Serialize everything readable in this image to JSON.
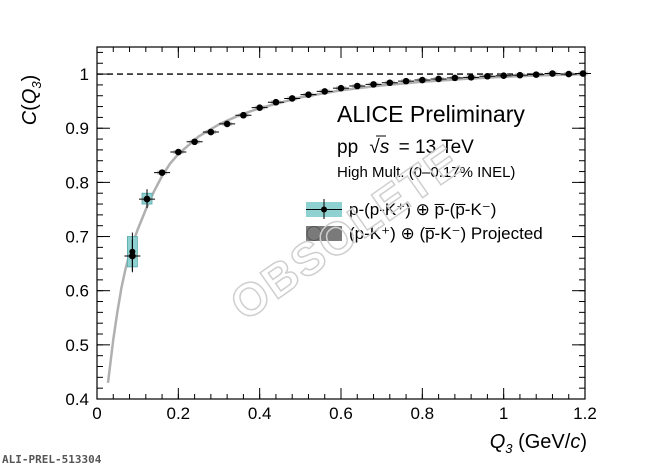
{
  "reference_id": "ALI-PREL-513304",
  "watermark": "OBSOLETE",
  "annotations": {
    "collab": "ALICE Preliminary",
    "system": "pp",
    "sqrt_s": "s",
    "energy": "= 13 TeV",
    "multiplicity": "High Mult. (0–0.17% INEL)"
  },
  "legend": {
    "series1": "p-(p-K⁺) ⊕ p̅-(p̅-K⁻)",
    "series2": "(p-K⁺) ⊕ (p̅-K⁻) Projected"
  },
  "colors": {
    "series1_box": "#8fd0d0",
    "series2_box": "#7a7a7a",
    "curve": "#b0b0b0",
    "markers": "#000000"
  },
  "chart_data": {
    "type": "scatter",
    "xlabel": "Q3 (GeV/c)",
    "ylabel": "C(Q3)",
    "xlim": [
      0,
      1.2
    ],
    "ylim": [
      0.4,
      1.05
    ],
    "x_ticks": [
      "0",
      "0.2",
      "0.4",
      "0.6",
      "0.8",
      "1",
      "1.2"
    ],
    "y_ticks": [
      "0.4",
      "0.5",
      "0.6",
      "0.7",
      "0.8",
      "0.9",
      "1"
    ],
    "reference_line": 1.0,
    "series": [
      {
        "name": "p-(p-K⁺) ⊕ p̅-(p̅-K⁻)",
        "points": [
          {
            "x": 0.087,
            "y": 0.672,
            "err": 0.028
          },
          {
            "x": 0.123,
            "y": 0.77,
            "err": 0.01
          }
        ]
      },
      {
        "name": "(p-K⁺) ⊕ (p̅-K⁻) Projected",
        "points": [
          {
            "x": 0.087,
            "y": 0.664,
            "err": 0.03
          },
          {
            "x": 0.123,
            "y": 0.769,
            "err": 0.01
          },
          {
            "x": 0.16,
            "y": 0.818,
            "err": 0.005
          },
          {
            "x": 0.2,
            "y": 0.856,
            "err": 0.004
          },
          {
            "x": 0.24,
            "y": 0.875,
            "err": 0.003
          },
          {
            "x": 0.28,
            "y": 0.893,
            "err": 0.003
          },
          {
            "x": 0.32,
            "y": 0.908,
            "err": 0.002
          },
          {
            "x": 0.36,
            "y": 0.924,
            "err": 0.002
          },
          {
            "x": 0.4,
            "y": 0.938,
            "err": 0.002
          },
          {
            "x": 0.44,
            "y": 0.948,
            "err": 0.002
          },
          {
            "x": 0.48,
            "y": 0.955,
            "err": 0.002
          },
          {
            "x": 0.52,
            "y": 0.962,
            "err": 0.002
          },
          {
            "x": 0.56,
            "y": 0.968,
            "err": 0.002
          },
          {
            "x": 0.6,
            "y": 0.974,
            "err": 0.002
          },
          {
            "x": 0.64,
            "y": 0.978,
            "err": 0.002
          },
          {
            "x": 0.68,
            "y": 0.981,
            "err": 0.002
          },
          {
            "x": 0.72,
            "y": 0.984,
            "err": 0.002
          },
          {
            "x": 0.76,
            "y": 0.987,
            "err": 0.002
          },
          {
            "x": 0.8,
            "y": 0.989,
            "err": 0.002
          },
          {
            "x": 0.84,
            "y": 0.991,
            "err": 0.002
          },
          {
            "x": 0.88,
            "y": 0.993,
            "err": 0.002
          },
          {
            "x": 0.92,
            "y": 0.994,
            "err": 0.002
          },
          {
            "x": 0.96,
            "y": 0.996,
            "err": 0.002
          },
          {
            "x": 1.0,
            "y": 0.997,
            "err": 0.002
          },
          {
            "x": 1.04,
            "y": 0.998,
            "err": 0.002
          },
          {
            "x": 1.08,
            "y": 0.999,
            "err": 0.002
          },
          {
            "x": 1.12,
            "y": 1.001,
            "err": 0.002
          },
          {
            "x": 1.16,
            "y": 1.0,
            "err": 0.002
          },
          {
            "x": 1.195,
            "y": 1.001,
            "err": 0.002
          }
        ]
      }
    ],
    "fit_curve": {
      "x": [
        0.027,
        0.04,
        0.05,
        0.06,
        0.07,
        0.08,
        0.09,
        0.1,
        0.12,
        0.14,
        0.16,
        0.18,
        0.2,
        0.25,
        0.3,
        0.35,
        0.4,
        0.5,
        0.6,
        0.7,
        0.8,
        0.9,
        1.0,
        1.1,
        1.2
      ],
      "y": [
        0.43,
        0.51,
        0.56,
        0.605,
        0.64,
        0.668,
        0.692,
        0.713,
        0.75,
        0.783,
        0.812,
        0.835,
        0.852,
        0.885,
        0.907,
        0.924,
        0.937,
        0.957,
        0.97,
        0.979,
        0.986,
        0.991,
        0.995,
        0.998,
        1.0
      ]
    }
  }
}
